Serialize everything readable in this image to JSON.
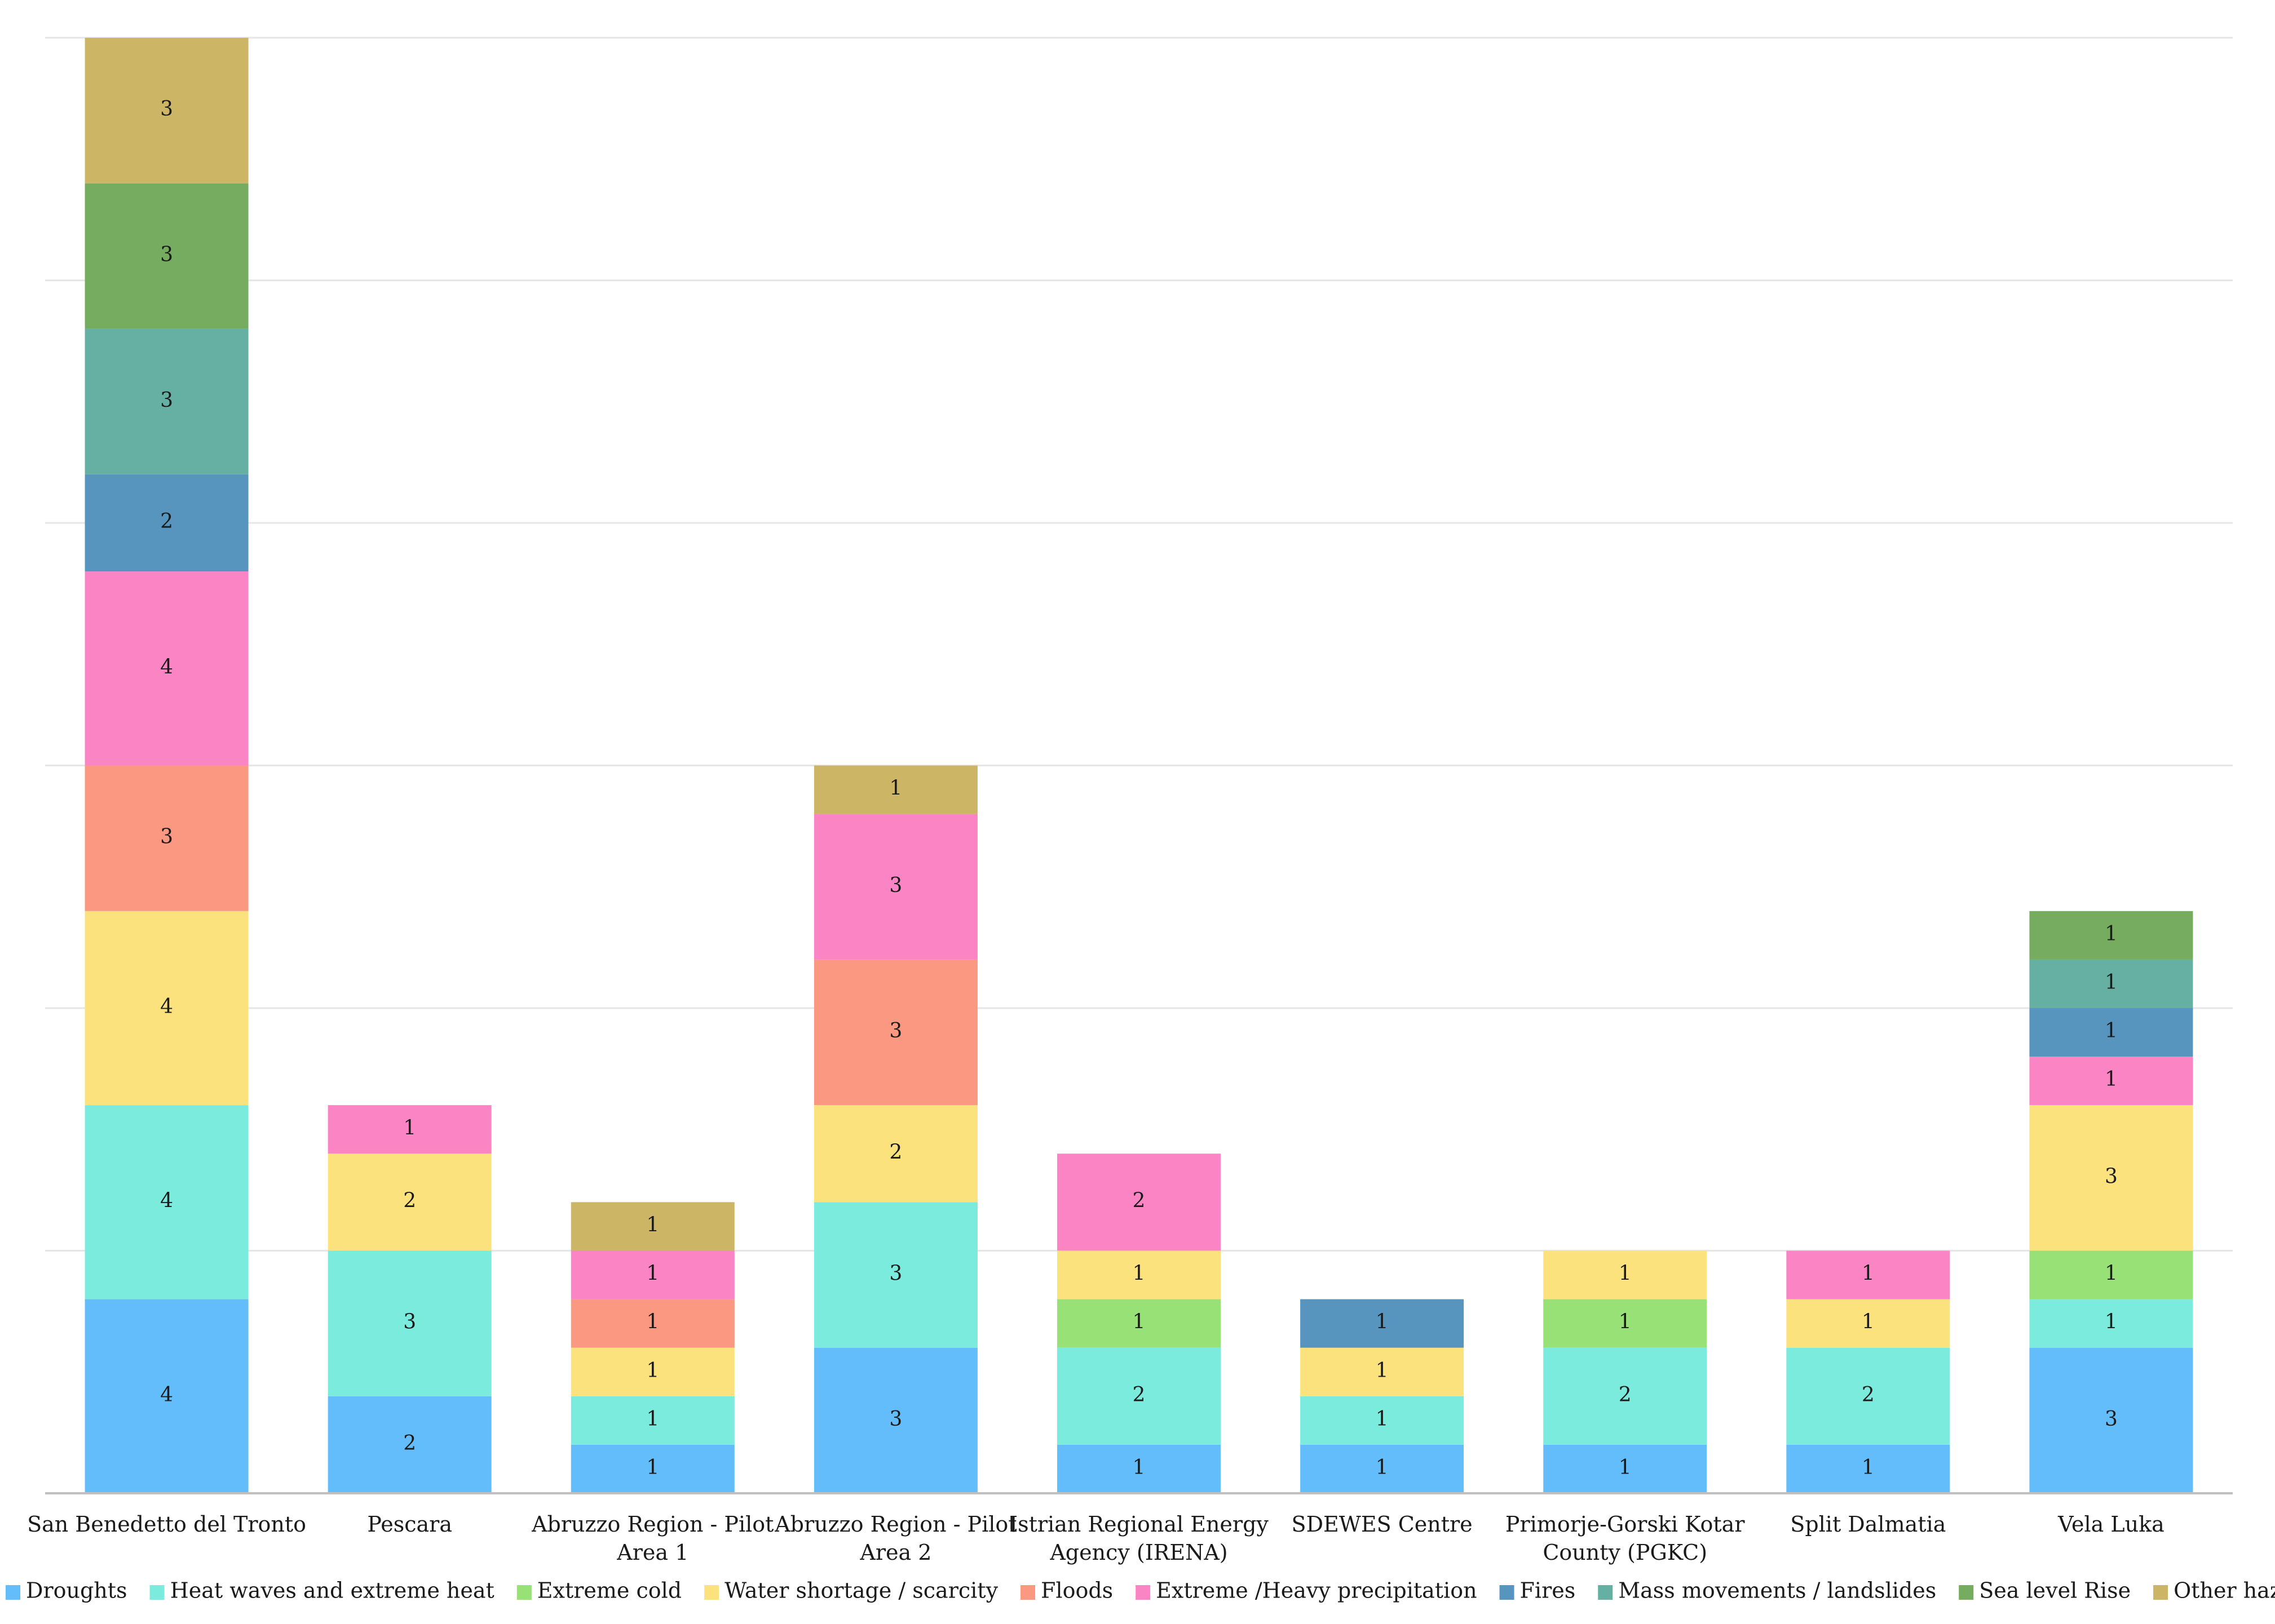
{
  "chart_data": {
    "type": "bar",
    "stacked": true,
    "title": "",
    "xlabel": "",
    "ylabel": "",
    "ylim": [
      0,
      30
    ],
    "grid": true,
    "legend_position": "bottom",
    "categories": [
      [
        "San Benedetto del Tronto"
      ],
      [
        "Pescara"
      ],
      [
        "Abruzzo Region - Pilot",
        "Area 1"
      ],
      [
        "Abruzzo Region - Pilot",
        "Area 2"
      ],
      [
        "Istrian Regional Energy",
        "Agency (IRENA)"
      ],
      [
        "SDEWES Centre"
      ],
      [
        "Primorje-Gorski Kotar",
        "County (PGKC)"
      ],
      [
        "Split Dalmatia"
      ],
      [
        "Vela Luka"
      ]
    ],
    "series": [
      {
        "name": "Droughts",
        "color": "#64bdfb",
        "values": [
          4,
          2,
          1,
          3,
          1,
          1,
          1,
          1,
          3
        ]
      },
      {
        "name": "Heat waves and extreme heat",
        "color": "#7aebdc",
        "values": [
          4,
          3,
          1,
          3,
          2,
          1,
          2,
          2,
          1
        ]
      },
      {
        "name": "Extreme cold",
        "color": "#98e176",
        "values": [
          0,
          0,
          0,
          0,
          1,
          0,
          1,
          0,
          1
        ]
      },
      {
        "name": "Water shortage / scarcity",
        "color": "#fbe27c",
        "values": [
          4,
          2,
          1,
          2,
          1,
          1,
          1,
          1,
          3
        ]
      },
      {
        "name": "Floods",
        "color": "#fb9881",
        "values": [
          3,
          0,
          1,
          3,
          0,
          0,
          0,
          0,
          0
        ]
      },
      {
        "name": "Extreme /Heavy precipitation",
        "color": "#fb85c4",
        "values": [
          4,
          1,
          1,
          3,
          2,
          0,
          0,
          1,
          1
        ]
      },
      {
        "name": "Fires",
        "color": "#5895be",
        "values": [
          2,
          0,
          0,
          0,
          0,
          1,
          0,
          0,
          1
        ]
      },
      {
        "name": "Mass movements / landslides",
        "color": "#66b0a3",
        "values": [
          3,
          0,
          0,
          0,
          0,
          0,
          0,
          0,
          1
        ]
      },
      {
        "name": "Sea level Rise",
        "color": "#76ac5f",
        "values": [
          3,
          0,
          0,
          0,
          0,
          0,
          0,
          0,
          1
        ]
      },
      {
        "name": "Other hazards",
        "color": "#cdb566",
        "values": [
          3,
          0,
          1,
          1,
          0,
          0,
          0,
          0,
          0
        ]
      }
    ]
  }
}
